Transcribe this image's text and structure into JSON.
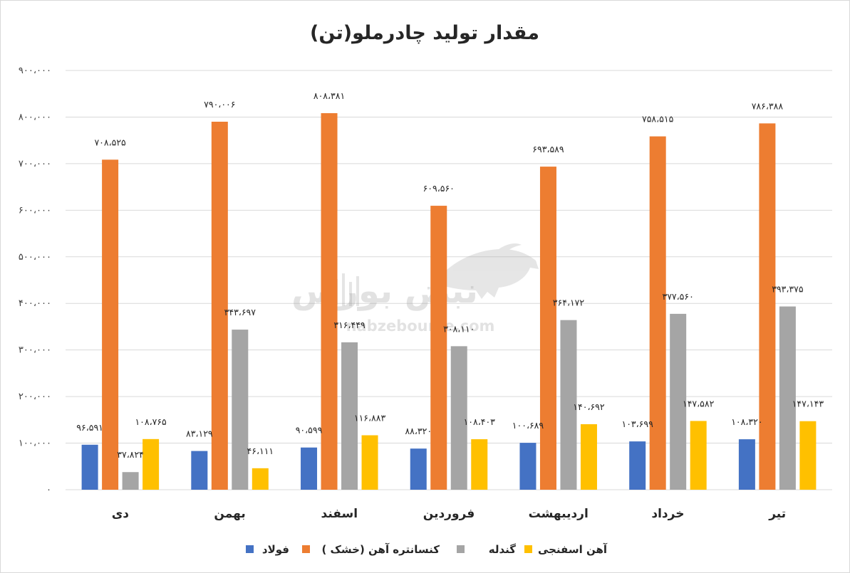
{
  "chart_data": {
    "type": "bar",
    "title": "مقدار تولید چادرملو(تن)",
    "xlabel": "",
    "ylabel": "",
    "ylim": [
      0,
      900000
    ],
    "y_ticks": [
      0,
      100000,
      200000,
      300000,
      400000,
      500000,
      600000,
      700000,
      800000,
      900000
    ],
    "y_tick_labels": [
      "۰",
      "۱۰۰،۰۰۰",
      "۲۰۰،۰۰۰",
      "۳۰۰،۰۰۰",
      "۴۰۰،۰۰۰",
      "۵۰۰،۰۰۰",
      "۶۰۰،۰۰۰",
      "۷۰۰،۰۰۰",
      "۸۰۰،۰۰۰",
      "۹۰۰،۰۰۰"
    ],
    "categories": [
      "دی",
      "بهمن",
      "اسفند",
      "فروردین",
      "اردیبهشت",
      "خرداد",
      "تیر"
    ],
    "grid": true,
    "legend_position": "bottom",
    "series": [
      {
        "name": "فولاد",
        "color": "#4472c4",
        "values": [
          96591,
          83129,
          90599,
          88320,
          100689,
          103699,
          108320
        ],
        "labels": [
          "۹۶،۵۹۱",
          "۸۳،۱۲۹",
          "۹۰،۵۹۹",
          "۸۸،۳۲۰",
          "۱۰۰،۶۸۹",
          "۱۰۳،۶۹۹",
          "۱۰۸،۳۲۰"
        ]
      },
      {
        "name": "کنسانتره آهن (خشک )",
        "color": "#ed7d31",
        "values": [
          708525,
          790006,
          808381,
          609560,
          693589,
          758515,
          786388
        ],
        "labels": [
          "۷۰۸،۵۲۵",
          "۷۹۰،۰۰۶",
          "۸۰۸،۳۸۱",
          "۶۰۹،۵۶۰",
          "۶۹۳،۵۸۹",
          "۷۵۸،۵۱۵",
          "۷۸۶،۳۸۸"
        ]
      },
      {
        "name": "گندله",
        "color": "#a5a5a5",
        "values": [
          37824,
          343697,
          316449,
          308110,
          364172,
          377560,
          393375
        ],
        "labels": [
          "۳۷،۸۲۴",
          "۳۴۳،۶۹۷",
          "۳۱۶،۴۴۹",
          "۳۰۸،۱۱۰",
          "۳۶۴،۱۷۲",
          "۳۷۷،۵۶۰",
          "۳۹۳،۳۷۵"
        ]
      },
      {
        "name": "آهن اسفنجی",
        "color": "#ffc000",
        "values": [
          108765,
          46111,
          116883,
          108403,
          140692,
          147582,
          147143
        ],
        "labels": [
          "۱۰۸،۷۶۵",
          "۴۶،۱۱۱",
          "۱۱۶،۸۸۳",
          "۱۰۸،۴۰۳",
          "۱۴۰،۶۹۲",
          "۱۴۷،۵۸۲",
          "۱۴۷،۱۴۳"
        ]
      }
    ]
  },
  "watermark": {
    "logo_text": "نبض بورس",
    "url_text": "nabzebourse.com"
  }
}
